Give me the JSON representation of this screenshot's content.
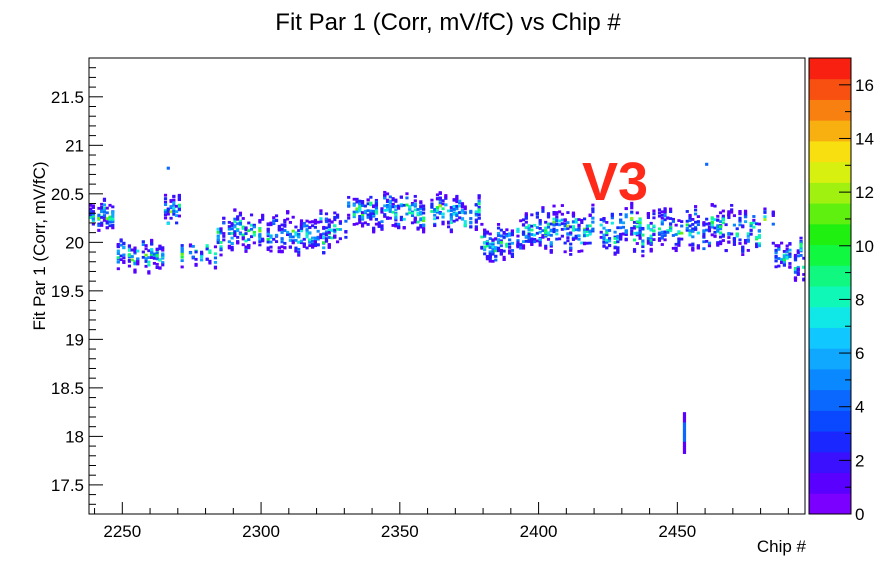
{
  "chart_data": {
    "type": "heatmap",
    "title": "Fit Par 1 (Corr, mV/fC) vs Chip #",
    "xlabel": "Chip #",
    "ylabel": "Fit Par 1 (Corr, mV/fC)",
    "xlim": [
      2238,
      2496
    ],
    "ylim": [
      17.2,
      21.9
    ],
    "x_ticks": [
      2250,
      2300,
      2350,
      2400,
      2450
    ],
    "y_ticks": [
      17.5,
      18,
      18.5,
      19,
      19.5,
      20,
      20.5,
      21,
      21.5
    ],
    "colorbar": {
      "range": [
        0,
        17
      ],
      "ticks": [
        0,
        2,
        4,
        6,
        8,
        10,
        12,
        14,
        16
      ],
      "palette": [
        "#7b00ff",
        "#5a00ff",
        "#3a10ff",
        "#1a28ff",
        "#0a48ff",
        "#0a68ff",
        "#0a88ff",
        "#10a8ff",
        "#10c8ff",
        "#10e8e8",
        "#10f8b8",
        "#10f880",
        "#10f840",
        "#20f010",
        "#60f010",
        "#a0f010",
        "#d8f010",
        "#f8e010",
        "#f8b010",
        "#f88010",
        "#f85010",
        "#f82010"
      ]
    },
    "annotations": [
      {
        "text": "V3",
        "color": "#ff2a1a"
      }
    ],
    "segments": [
      {
        "x": [
          2238,
          2246
        ],
        "center": 20.3,
        "amp": 0.06,
        "spread": 0.12
      },
      {
        "x": [
          2247,
          2264
        ],
        "center": 19.88,
        "amp": 0.07,
        "spread": 0.13
      },
      {
        "x": [
          2265,
          2270
        ],
        "center": 20.3,
        "amp": 0.1,
        "spread": 0.12
      },
      {
        "x": [
          2271,
          2283
        ],
        "center": 19.9,
        "amp": 0.06,
        "spread": 0.13
      },
      {
        "x": [
          2284,
          2330
        ],
        "center": 20.12,
        "amp": 0.1,
        "spread": 0.15
      },
      {
        "x": [
          2331,
          2378
        ],
        "center": 20.32,
        "amp": 0.08,
        "spread": 0.14
      },
      {
        "x": [
          2379,
          2390
        ],
        "center": 19.98,
        "amp": 0.08,
        "spread": 0.15
      },
      {
        "x": [
          2391,
          2484
        ],
        "center": 20.15,
        "amp": 0.12,
        "spread": 0.17
      },
      {
        "x": [
          2485,
          2496
        ],
        "center": 19.85,
        "amp": 0.1,
        "spread": 0.14
      }
    ],
    "outliers": [
      {
        "x": 2452,
        "y": [
          17.85,
          18.25
        ]
      },
      {
        "x": 2266,
        "y": [
          20.78,
          20.78
        ]
      },
      {
        "x": 2460,
        "y": [
          20.82,
          20.82
        ]
      }
    ]
  }
}
